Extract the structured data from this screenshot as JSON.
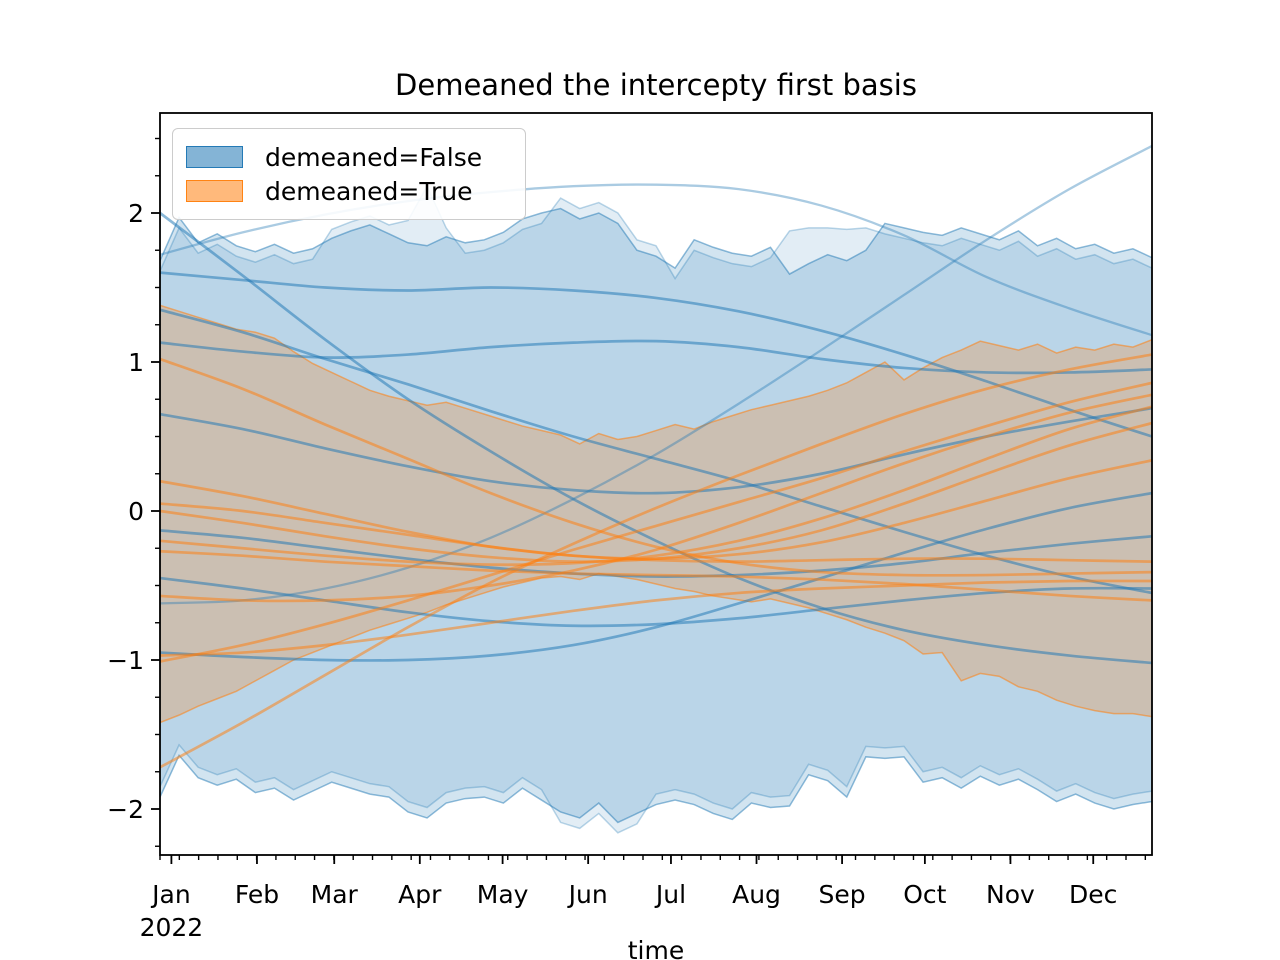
{
  "title": "Demeaned the intercepty first basis",
  "xlabel": "time",
  "legend": {
    "items": [
      {
        "label": "demeaned=False",
        "color": "#1f77b4"
      },
      {
        "label": "demeaned=True",
        "color": "#ff7f0e"
      }
    ]
  },
  "colors": {
    "blue": "#1f77b4",
    "orange": "#ff7f0e",
    "spine": "#000000",
    "tick_label": "#000000",
    "legend_border": "#cccccc"
  },
  "chart_data": {
    "type": "line",
    "title": "Demeaned the intercepty first basis",
    "xlabel": "time",
    "ylabel": "",
    "legend_entries": [
      "demeaned=False",
      "demeaned=True"
    ],
    "legend_position": "upper left",
    "grid": false,
    "x_tick_labels": [
      "Jan",
      "Feb",
      "Mar",
      "Apr",
      "May",
      "Jun",
      "Jul",
      "Aug",
      "Sep",
      "Oct",
      "Nov",
      "Dec"
    ],
    "x_year_label": "2022",
    "x_month_start_days": [
      0,
      31,
      59,
      90,
      120,
      151,
      181,
      212,
      243,
      273,
      304,
      334
    ],
    "x_minor_tick_interval_days": 7,
    "y_ticks": [
      -2,
      -1,
      0,
      1,
      2
    ],
    "y_minor_step": 0.25,
    "ylim": [
      -2.31,
      2.67
    ],
    "bands": [
      {
        "name": "demeaned-false-outer",
        "group": "demeaned=False",
        "color": "#1f77b4",
        "fill_opacity": 0.13,
        "edge_opacity": 0.3,
        "upper": [
          1.61,
          1.9,
          1.73,
          1.79,
          1.71,
          1.67,
          1.72,
          1.66,
          1.69,
          1.89,
          1.94,
          1.98,
          1.92,
          1.95,
          2.18,
          1.9,
          1.73,
          1.75,
          1.8,
          1.89,
          1.93,
          2.1,
          2.03,
          2.07,
          2.0,
          1.82,
          1.78,
          1.56,
          1.75,
          1.7,
          1.66,
          1.64,
          1.7,
          1.88,
          1.9,
          1.9,
          1.89,
          1.9,
          1.86,
          1.83,
          1.8,
          1.78,
          1.83,
          1.79,
          1.75,
          1.81,
          1.71,
          1.76,
          1.69,
          1.72,
          1.66,
          1.69,
          1.63
        ],
        "lower": [
          -1.85,
          -1.57,
          -1.72,
          -1.77,
          -1.73,
          -1.82,
          -1.79,
          -1.87,
          -1.81,
          -1.75,
          -1.79,
          -1.83,
          -1.85,
          -1.95,
          -1.99,
          -1.89,
          -1.86,
          -1.85,
          -1.89,
          -1.79,
          -1.87,
          -2.09,
          -2.13,
          -2.03,
          -2.16,
          -2.1,
          -1.9,
          -1.87,
          -1.9,
          -1.96,
          -2.0,
          -1.89,
          -1.92,
          -1.91,
          -1.7,
          -1.74,
          -1.85,
          -1.58,
          -1.59,
          -1.58,
          -1.75,
          -1.72,
          -1.79,
          -1.71,
          -1.77,
          -1.73,
          -1.8,
          -1.88,
          -1.83,
          -1.89,
          -1.93,
          -1.9,
          -1.88
        ]
      },
      {
        "name": "demeaned-false",
        "group": "demeaned=False",
        "color": "#1f77b4",
        "fill_opacity": 0.2,
        "edge_opacity": 0.5,
        "upper": [
          1.68,
          1.97,
          1.8,
          1.86,
          1.78,
          1.74,
          1.79,
          1.73,
          1.76,
          1.83,
          1.88,
          1.92,
          1.86,
          1.8,
          1.78,
          1.84,
          1.8,
          1.82,
          1.87,
          1.96,
          2.0,
          2.03,
          1.96,
          2.0,
          1.93,
          1.75,
          1.71,
          1.63,
          1.82,
          1.77,
          1.73,
          1.71,
          1.77,
          1.59,
          1.66,
          1.72,
          1.68,
          1.75,
          1.93,
          1.9,
          1.87,
          1.85,
          1.9,
          1.86,
          1.82,
          1.88,
          1.78,
          1.83,
          1.76,
          1.79,
          1.73,
          1.76,
          1.7
        ],
        "lower": [
          -1.92,
          -1.64,
          -1.79,
          -1.84,
          -1.8,
          -1.89,
          -1.86,
          -1.94,
          -1.88,
          -1.82,
          -1.86,
          -1.9,
          -1.92,
          -2.02,
          -2.06,
          -1.96,
          -1.93,
          -1.92,
          -1.96,
          -1.86,
          -1.94,
          -2.02,
          -2.06,
          -1.96,
          -2.09,
          -2.03,
          -1.97,
          -1.94,
          -1.97,
          -2.03,
          -2.07,
          -1.96,
          -1.99,
          -1.98,
          -1.77,
          -1.81,
          -1.92,
          -1.65,
          -1.66,
          -1.65,
          -1.82,
          -1.79,
          -1.86,
          -1.78,
          -1.84,
          -1.8,
          -1.87,
          -1.95,
          -1.9,
          -1.96,
          -2.0,
          -1.97,
          -1.95
        ]
      },
      {
        "name": "demeaned-true",
        "group": "demeaned=True",
        "color": "#ff7f0e",
        "fill_opacity": 0.25,
        "edge_opacity": 0.55,
        "upper": [
          1.38,
          1.34,
          1.3,
          1.26,
          1.22,
          1.2,
          1.16,
          1.07,
          0.99,
          0.93,
          0.87,
          0.81,
          0.77,
          0.74,
          0.71,
          0.73,
          0.69,
          0.65,
          0.61,
          0.57,
          0.54,
          0.51,
          0.45,
          0.52,
          0.48,
          0.5,
          0.54,
          0.58,
          0.55,
          0.6,
          0.64,
          0.68,
          0.71,
          0.74,
          0.77,
          0.81,
          0.86,
          0.93,
          1.0,
          0.88,
          0.96,
          1.03,
          1.08,
          1.14,
          1.11,
          1.08,
          1.12,
          1.06,
          1.1,
          1.08,
          1.12,
          1.1,
          1.15
        ],
        "lower": [
          -1.42,
          -1.37,
          -1.31,
          -1.26,
          -1.21,
          -1.14,
          -1.07,
          -1.0,
          -0.95,
          -0.9,
          -0.85,
          -0.8,
          -0.76,
          -0.72,
          -0.68,
          -0.63,
          -0.59,
          -0.55,
          -0.51,
          -0.48,
          -0.45,
          -0.44,
          -0.46,
          -0.42,
          -0.44,
          -0.46,
          -0.49,
          -0.52,
          -0.54,
          -0.57,
          -0.59,
          -0.61,
          -0.59,
          -0.62,
          -0.65,
          -0.69,
          -0.73,
          -0.78,
          -0.82,
          -0.87,
          -0.96,
          -0.95,
          -1.14,
          -1.09,
          -1.11,
          -1.18,
          -1.21,
          -1.27,
          -1.31,
          -1.34,
          -1.36,
          -1.36,
          -1.38
        ]
      }
    ],
    "series": [
      {
        "name": "false-sample-1",
        "group": "demeaned=False",
        "color": "#1f77b4",
        "light": false,
        "values": [
          1.6,
          1.55,
          1.5,
          1.48,
          1.5,
          1.48,
          1.43,
          1.34,
          1.21,
          1.05,
          0.87,
          0.68,
          0.5
        ]
      },
      {
        "name": "false-sample-2",
        "group": "demeaned=False",
        "color": "#1f77b4",
        "light": false,
        "values": [
          1.35,
          1.2,
          1.02,
          0.85,
          0.67,
          0.5,
          0.35,
          0.2,
          0.03,
          -0.14,
          -0.3,
          -0.44,
          -0.55
        ]
      },
      {
        "name": "false-sample-3",
        "group": "demeaned=False",
        "color": "#1f77b4",
        "light": false,
        "values": [
          1.13,
          1.07,
          1.03,
          1.05,
          1.1,
          1.13,
          1.14,
          1.1,
          1.02,
          0.96,
          0.93,
          0.93,
          0.95
        ]
      },
      {
        "name": "false-sample-4",
        "group": "demeaned=False",
        "color": "#1f77b4",
        "light": false,
        "values": [
          2.0,
          1.58,
          1.15,
          0.75,
          0.4,
          0.08,
          -0.2,
          -0.45,
          -0.65,
          -0.8,
          -0.9,
          -0.97,
          -1.02
        ]
      },
      {
        "name": "false-sample-5",
        "group": "demeaned=False",
        "color": "#1f77b4",
        "light": false,
        "values": [
          0.65,
          0.55,
          0.42,
          0.3,
          0.2,
          0.14,
          0.12,
          0.16,
          0.25,
          0.38,
          0.5,
          0.6,
          0.69
        ]
      },
      {
        "name": "false-sample-6",
        "group": "demeaned=False",
        "color": "#1f77b4",
        "light": false,
        "values": [
          -0.13,
          -0.18,
          -0.25,
          -0.32,
          -0.38,
          -0.42,
          -0.44,
          -0.43,
          -0.4,
          -0.35,
          -0.28,
          -0.22,
          -0.17
        ]
      },
      {
        "name": "false-sample-7",
        "group": "demeaned=False",
        "color": "#1f77b4",
        "light": false,
        "values": [
          -0.45,
          -0.52,
          -0.6,
          -0.68,
          -0.74,
          -0.77,
          -0.76,
          -0.72,
          -0.66,
          -0.6,
          -0.55,
          -0.52,
          -0.52
        ]
      },
      {
        "name": "false-sample-8",
        "group": "demeaned=False",
        "color": "#1f77b4",
        "light": false,
        "values": [
          -0.95,
          -0.98,
          -1.0,
          -1.0,
          -0.97,
          -0.9,
          -0.78,
          -0.62,
          -0.45,
          -0.28,
          -0.12,
          0.02,
          0.12
        ]
      },
      {
        "name": "false-sample-arc",
        "group": "demeaned=False",
        "color": "#1f77b4",
        "light": true,
        "values": [
          1.72,
          1.87,
          1.99,
          2.08,
          2.14,
          2.18,
          2.19,
          2.16,
          2.05,
          1.85,
          1.57,
          1.36,
          1.18
        ]
      },
      {
        "name": "false-sample-riser",
        "group": "demeaned=False",
        "color": "#1f77b4",
        "light": true,
        "values": [
          -0.62,
          -0.6,
          -0.52,
          -0.38,
          -0.18,
          0.08,
          0.38,
          0.72,
          1.08,
          1.45,
          1.82,
          2.16,
          2.45
        ]
      },
      {
        "name": "true-sample-1",
        "group": "demeaned=True",
        "color": "#ff7f0e",
        "light": false,
        "values": [
          1.02,
          0.82,
          0.58,
          0.35,
          0.12,
          -0.08,
          -0.24,
          -0.35,
          -0.41,
          -0.43,
          -0.43,
          -0.42,
          -0.41
        ]
      },
      {
        "name": "true-sample-2",
        "group": "demeaned=True",
        "color": "#ff7f0e",
        "light": false,
        "values": [
          0.2,
          0.1,
          -0.02,
          -0.14,
          -0.24,
          -0.3,
          -0.32,
          -0.29,
          -0.21,
          -0.08,
          0.07,
          0.22,
          0.34
        ]
      },
      {
        "name": "true-sample-3",
        "group": "demeaned=True",
        "color": "#ff7f0e",
        "light": false,
        "values": [
          0.05,
          0.0,
          -0.08,
          -0.16,
          -0.24,
          -0.3,
          -0.33,
          -0.34,
          -0.33,
          -0.32,
          -0.32,
          -0.33,
          -0.34
        ]
      },
      {
        "name": "true-sample-4",
        "group": "demeaned=True",
        "color": "#ff7f0e",
        "light": false,
        "values": [
          0.0,
          -0.08,
          -0.17,
          -0.25,
          -0.31,
          -0.34,
          -0.32,
          -0.25,
          -0.13,
          0.05,
          0.25,
          0.44,
          0.59
        ]
      },
      {
        "name": "true-sample-5",
        "group": "demeaned=True",
        "color": "#ff7f0e",
        "light": false,
        "values": [
          -0.2,
          -0.25,
          -0.3,
          -0.34,
          -0.36,
          -0.35,
          -0.3,
          -0.2,
          -0.05,
          0.14,
          0.35,
          0.55,
          0.7
        ]
      },
      {
        "name": "true-sample-6",
        "group": "demeaned=True",
        "color": "#ff7f0e",
        "light": false,
        "values": [
          -0.27,
          -0.3,
          -0.34,
          -0.37,
          -0.4,
          -0.42,
          -0.43,
          -0.44,
          -0.46,
          -0.49,
          -0.53,
          -0.57,
          -0.6
        ]
      },
      {
        "name": "true-sample-7",
        "group": "demeaned=True",
        "color": "#ff7f0e",
        "light": false,
        "values": [
          -0.57,
          -0.6,
          -0.6,
          -0.57,
          -0.5,
          -0.4,
          -0.26,
          -0.08,
          0.12,
          0.32,
          0.5,
          0.66,
          0.78
        ]
      },
      {
        "name": "true-sample-8",
        "group": "demeaned=True",
        "color": "#ff7f0e",
        "light": false,
        "values": [
          -0.97,
          -0.95,
          -0.9,
          -0.83,
          -0.75,
          -0.67,
          -0.6,
          -0.55,
          -0.52,
          -0.5,
          -0.48,
          -0.47,
          -0.47
        ]
      },
      {
        "name": "true-sample-9",
        "group": "demeaned=True",
        "color": "#ff7f0e",
        "light": false,
        "values": [
          -1.01,
          -0.9,
          -0.76,
          -0.6,
          -0.43,
          -0.26,
          -0.1,
          0.06,
          0.22,
          0.4,
          0.57,
          0.73,
          0.86
        ]
      },
      {
        "name": "true-sample-10",
        "group": "demeaned=True",
        "color": "#ff7f0e",
        "light": false,
        "values": [
          -1.72,
          -1.42,
          -1.1,
          -0.78,
          -0.48,
          -0.22,
          0.02,
          0.24,
          0.45,
          0.65,
          0.82,
          0.95,
          1.05
        ]
      }
    ]
  }
}
